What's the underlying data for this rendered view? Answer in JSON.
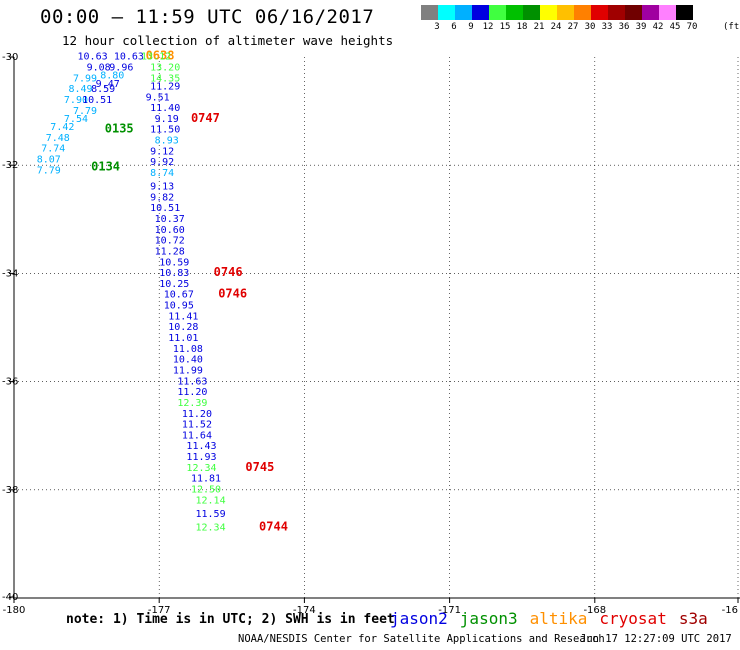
{
  "header": {
    "title": "00:00 – 11:59 UTC 06/16/2017",
    "subtitle": "12 hour collection of altimeter wave heights"
  },
  "legend": {
    "colors": [
      "#808080",
      "#00ffff",
      "#00b0ff",
      "#0000e0",
      "#40ff40",
      "#00c000",
      "#009000",
      "#ffff00",
      "#ffc000",
      "#ff8000",
      "#e00000",
      "#a00000",
      "#700000",
      "#a000a0",
      "#ff80ff",
      "#000000"
    ],
    "labels": [
      "3",
      "6",
      "9",
      "12",
      "15",
      "18",
      "21",
      "24",
      "27",
      "30",
      "33",
      "36",
      "39",
      "42",
      "45",
      "70"
    ],
    "unit": "(ft)"
  },
  "axes": {
    "x_ticks": [
      "-180",
      "-177",
      "-174",
      "-171",
      "-168",
      "-16"
    ],
    "y_ticks": [
      "-30",
      "-32",
      "-34",
      "-36",
      "-38",
      "-40"
    ]
  },
  "chart_data": {
    "type": "scatter",
    "xlim": [
      -180,
      -164
    ],
    "ylim": [
      -40,
      -30
    ],
    "gridlines": "dashed",
    "points": [
      {
        "lon": -178.6,
        "lat": -30.05,
        "text": "10.63",
        "color": "#0000e0"
      },
      {
        "lon": -177.8,
        "lat": -30.05,
        "text": "10.63",
        "color": "#0000e0"
      },
      {
        "lon": -177.1,
        "lat": -30.05,
        "text": "0638",
        "color": "#ff9000"
      },
      {
        "lon": -177.2,
        "lat": -30.05,
        "text": "13.12",
        "color": "#40ff40"
      },
      {
        "lon": -178.4,
        "lat": -30.25,
        "text": "9.08",
        "color": "#0000e0"
      },
      {
        "lon": -177.9,
        "lat": -30.25,
        "text": "9.96",
        "color": "#0000e0"
      },
      {
        "lon": -177.0,
        "lat": -30.25,
        "text": "13.20",
        "color": "#40ff40"
      },
      {
        "lon": -178.7,
        "lat": -30.45,
        "text": "7.99",
        "color": "#00b0ff"
      },
      {
        "lon": -178.1,
        "lat": -30.4,
        "text": "8.80",
        "color": "#00b0ff"
      },
      {
        "lon": -177.0,
        "lat": -30.45,
        "text": "14.35",
        "color": "#40ff40"
      },
      {
        "lon": -178.2,
        "lat": -30.55,
        "text": "9.47",
        "color": "#0000e0"
      },
      {
        "lon": -178.8,
        "lat": -30.65,
        "text": "8.49",
        "color": "#00b0ff"
      },
      {
        "lon": -178.3,
        "lat": -30.65,
        "text": "8.59",
        "color": "#0000e0"
      },
      {
        "lon": -177.0,
        "lat": -30.6,
        "text": "11.29",
        "color": "#0000e0"
      },
      {
        "lon": -178.9,
        "lat": -30.85,
        "text": "7.90",
        "color": "#00b0ff"
      },
      {
        "lon": -178.5,
        "lat": -30.85,
        "text": "10.51",
        "color": "#0000e0"
      },
      {
        "lon": -177.1,
        "lat": -30.8,
        "text": "9.51",
        "color": "#0000e0"
      },
      {
        "lon": -178.7,
        "lat": -31.05,
        "text": "7.79",
        "color": "#00b0ff"
      },
      {
        "lon": -177.0,
        "lat": -31.0,
        "text": "11.40",
        "color": "#0000e0"
      },
      {
        "lon": -178.9,
        "lat": -31.2,
        "text": "7.54",
        "color": "#00b0ff"
      },
      {
        "lon": -176.9,
        "lat": -31.2,
        "text": "9.19",
        "color": "#0000e0"
      },
      {
        "lon": -176.1,
        "lat": -31.2,
        "text": "0747",
        "color": "#e00000"
      },
      {
        "lon": -179.2,
        "lat": -31.35,
        "text": "7.42",
        "color": "#00b0ff"
      },
      {
        "lon": -178.0,
        "lat": -31.4,
        "text": "0135",
        "color": "#009000"
      },
      {
        "lon": -177.0,
        "lat": -31.4,
        "text": "11.50",
        "color": "#0000e0"
      },
      {
        "lon": -179.3,
        "lat": -31.55,
        "text": "7.48",
        "color": "#00b0ff"
      },
      {
        "lon": -176.9,
        "lat": -31.6,
        "text": "8.93",
        "color": "#00b0ff"
      },
      {
        "lon": -179.4,
        "lat": -31.75,
        "text": "7.74",
        "color": "#00b0ff"
      },
      {
        "lon": -177.0,
        "lat": -31.8,
        "text": "9.12",
        "color": "#0000e0"
      },
      {
        "lon": -179.5,
        "lat": -31.95,
        "text": "8.07",
        "color": "#00b0ff"
      },
      {
        "lon": -177.0,
        "lat": -32.0,
        "text": "9.92",
        "color": "#0000e0"
      },
      {
        "lon": -179.5,
        "lat": -32.15,
        "text": "7.79",
        "color": "#00b0ff"
      },
      {
        "lon": -178.3,
        "lat": -32.1,
        "text": "0134",
        "color": "#009000"
      },
      {
        "lon": -177.0,
        "lat": -32.2,
        "text": "8.74",
        "color": "#00b0ff"
      },
      {
        "lon": -177.0,
        "lat": -32.45,
        "text": "9.13",
        "color": "#0000e0"
      },
      {
        "lon": -177.0,
        "lat": -32.65,
        "text": "9.82",
        "color": "#0000e0"
      },
      {
        "lon": -177.0,
        "lat": -32.85,
        "text": "10.51",
        "color": "#0000e0"
      },
      {
        "lon": -176.9,
        "lat": -33.05,
        "text": "10.37",
        "color": "#0000e0"
      },
      {
        "lon": -176.9,
        "lat": -33.25,
        "text": "10.60",
        "color": "#0000e0"
      },
      {
        "lon": -176.9,
        "lat": -33.45,
        "text": "10.72",
        "color": "#0000e0"
      },
      {
        "lon": -176.9,
        "lat": -33.65,
        "text": "11.28",
        "color": "#0000e0"
      },
      {
        "lon": -176.8,
        "lat": -33.85,
        "text": "10.59",
        "color": "#0000e0"
      },
      {
        "lon": -176.8,
        "lat": -34.05,
        "text": "10.83",
        "color": "#0000e0"
      },
      {
        "lon": -175.6,
        "lat": -34.05,
        "text": "0746",
        "color": "#e00000"
      },
      {
        "lon": -176.8,
        "lat": -34.25,
        "text": "10.25",
        "color": "#0000e0"
      },
      {
        "lon": -176.7,
        "lat": -34.45,
        "text": "10.67",
        "color": "#0000e0"
      },
      {
        "lon": -175.5,
        "lat": -34.45,
        "text": "0746",
        "color": "#e00000"
      },
      {
        "lon": -176.7,
        "lat": -34.65,
        "text": "10.95",
        "color": "#0000e0"
      },
      {
        "lon": -176.6,
        "lat": -34.85,
        "text": "11.41",
        "color": "#0000e0"
      },
      {
        "lon": -176.6,
        "lat": -35.05,
        "text": "10.28",
        "color": "#0000e0"
      },
      {
        "lon": -176.6,
        "lat": -35.25,
        "text": "11.01",
        "color": "#0000e0"
      },
      {
        "lon": -176.5,
        "lat": -35.45,
        "text": "11.08",
        "color": "#0000e0"
      },
      {
        "lon": -176.5,
        "lat": -35.65,
        "text": "10.40",
        "color": "#0000e0"
      },
      {
        "lon": -176.5,
        "lat": -35.85,
        "text": "11.99",
        "color": "#0000e0"
      },
      {
        "lon": -176.4,
        "lat": -36.05,
        "text": "11.63",
        "color": "#0000e0"
      },
      {
        "lon": -176.4,
        "lat": -36.25,
        "text": "11.20",
        "color": "#0000e0"
      },
      {
        "lon": -176.4,
        "lat": -36.45,
        "text": "12.39",
        "color": "#40ff40"
      },
      {
        "lon": -176.3,
        "lat": -36.65,
        "text": "11.20",
        "color": "#0000e0"
      },
      {
        "lon": -176.3,
        "lat": -36.85,
        "text": "11.52",
        "color": "#0000e0"
      },
      {
        "lon": -176.3,
        "lat": -37.05,
        "text": "11.64",
        "color": "#0000e0"
      },
      {
        "lon": -176.2,
        "lat": -37.25,
        "text": "11.43",
        "color": "#0000e0"
      },
      {
        "lon": -176.2,
        "lat": -37.45,
        "text": "11.93",
        "color": "#0000e0"
      },
      {
        "lon": -176.2,
        "lat": -37.65,
        "text": "12.34",
        "color": "#40ff40"
      },
      {
        "lon": -174.9,
        "lat": -37.65,
        "text": "0745",
        "color": "#e00000"
      },
      {
        "lon": -176.1,
        "lat": -37.85,
        "text": "11.81",
        "color": "#0000e0"
      },
      {
        "lon": -176.1,
        "lat": -38.05,
        "text": "12.50",
        "color": "#40ff40"
      },
      {
        "lon": -176.0,
        "lat": -38.25,
        "text": "12.14",
        "color": "#40ff40"
      },
      {
        "lon": -176.0,
        "lat": -38.5,
        "text": "11.59",
        "color": "#0000e0"
      },
      {
        "lon": -176.0,
        "lat": -38.75,
        "text": "12.34",
        "color": "#40ff40"
      },
      {
        "lon": -174.6,
        "lat": -38.75,
        "text": "0744",
        "color": "#e00000"
      }
    ]
  },
  "footer": {
    "note": "note: 1) Time is in UTC; 2) SWH is in feet",
    "satellites": [
      {
        "name": "jason2",
        "color": "#0000e0"
      },
      {
        "name": "jason3",
        "color": "#009000"
      },
      {
        "name": "altika",
        "color": "#ff9000"
      },
      {
        "name": "cryosat",
        "color": "#e00000"
      },
      {
        "name": "s3a",
        "color": "#a00000"
      }
    ],
    "credit": "NOAA/NESDIS Center for Satellite Applications and Research",
    "timestamp": "Jun 17 12:27:09 UTC 2017"
  }
}
